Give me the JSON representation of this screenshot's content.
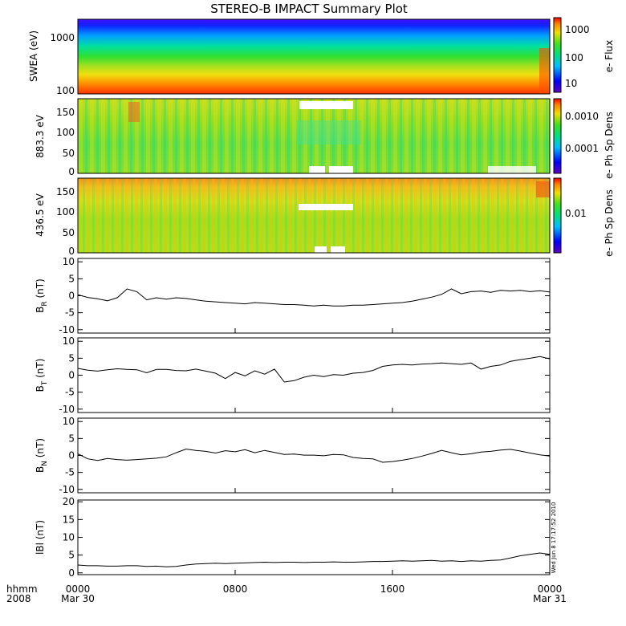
{
  "chart_data": [
    {
      "type": "heatmap",
      "title": "STEREO-B IMPACT Summary Plot",
      "ylabel": "SWEA (eV)",
      "yscale": "log",
      "ylim": [
        90,
        2000
      ],
      "yticks": [
        "100",
        "1000"
      ],
      "colorbar": {
        "label": "e- Flux",
        "scale": "log",
        "ticks": [
          "10",
          "100",
          "1000"
        ]
      },
      "description_values": {
        "low_energy_flux": "high (red)",
        "high_energy_flux": "low (blue)"
      }
    },
    {
      "type": "heatmap",
      "ylabel": "883.3 eV",
      "ylim": [
        -10,
        180
      ],
      "yticks": [
        "0",
        "50",
        "100",
        "150"
      ],
      "colorbar": {
        "label": "e- Ph Sp Dens",
        "scale": "log",
        "ticks": [
          "0.0001",
          "0.0010"
        ]
      }
    },
    {
      "type": "heatmap",
      "ylabel": "436.5 eV",
      "ylim": [
        -10,
        180
      ],
      "yticks": [
        "0",
        "50",
        "100",
        "150"
      ],
      "colorbar": {
        "label": "e- Ph Sp Dens",
        "scale": "log",
        "ticks": [
          "0.01"
        ]
      }
    },
    {
      "type": "line",
      "ylabel_main": "B",
      "ylabel_sub": "R",
      "ylabel_unit": " (nT)",
      "ylim": [
        -11,
        11
      ],
      "yticks": [
        "10",
        "5",
        "0",
        "-5",
        "-10"
      ],
      "x": [
        0,
        0.5,
        1,
        1.5,
        2,
        2.5,
        3,
        3.5,
        4,
        4.5,
        5,
        5.5,
        6,
        6.5,
        7,
        7.5,
        8,
        8.5,
        9,
        9.5,
        10,
        10.5,
        11,
        11.5,
        12,
        12.5,
        13,
        13.5,
        14,
        14.5,
        15,
        15.5,
        16,
        16.5,
        17,
        17.5,
        18,
        18.5,
        19,
        19.5,
        20,
        20.5,
        21,
        21.5,
        22,
        22.5,
        23,
        23.5,
        24
      ],
      "values": [
        0.3,
        -0.5,
        -0.9,
        -1.5,
        -0.6,
        2,
        1.2,
        -1.2,
        -0.6,
        -1,
        -0.6,
        -0.8,
        -1.2,
        -1.6,
        -1.8,
        -2,
        -2.2,
        -2.4,
        -2,
        -2.2,
        -2.4,
        -2.6,
        -2.6,
        -2.8,
        -3,
        -2.8,
        -3,
        -3,
        -2.8,
        -2.8,
        -2.6,
        -2.4,
        -2.2,
        -2,
        -1.6,
        -1,
        -0.4,
        0.4,
        2,
        0.6,
        1.2,
        1.4,
        1,
        1.6,
        1.4,
        1.6,
        1.2,
        1.5,
        1.1
      ]
    },
    {
      "type": "line",
      "ylabel_main": "B",
      "ylabel_sub": "T",
      "ylabel_unit": " (nT)",
      "ylim": [
        -11,
        11
      ],
      "yticks": [
        "10",
        "5",
        "0",
        "-5",
        "-10"
      ],
      "x": [
        0,
        0.5,
        1,
        1.5,
        2,
        2.5,
        3,
        3.5,
        4,
        4.5,
        5,
        5.5,
        6,
        6.5,
        7,
        7.5,
        8,
        8.5,
        9,
        9.5,
        10,
        10.5,
        11,
        11.5,
        12,
        12.5,
        13,
        13.5,
        14,
        14.5,
        15,
        15.5,
        16,
        16.5,
        17,
        17.5,
        18,
        18.5,
        19,
        19.5,
        20,
        20.5,
        21,
        21.5,
        22,
        22.5,
        23,
        23.5,
        24
      ],
      "values": [
        2,
        1.5,
        1.2,
        1.6,
        1.9,
        1.7,
        1.6,
        0.7,
        1.7,
        1.7,
        1.4,
        1.3,
        1.8,
        1.2,
        0.6,
        -1,
        0.8,
        -0.2,
        1.3,
        0.3,
        1.8,
        -2,
        -1.6,
        -0.6,
        0,
        -0.4,
        0.2,
        0,
        0.6,
        0.8,
        1.4,
        2.6,
        3,
        3.2,
        3,
        3.3,
        3.4,
        3.6,
        3.4,
        3.2,
        3.6,
        1.8,
        2.6,
        3,
        4.1,
        4.6,
        5,
        5.5,
        4.8
      ]
    },
    {
      "type": "line",
      "ylabel_main": "B",
      "ylabel_sub": "N",
      "ylabel_unit": " (nT)",
      "ylim": [
        -11,
        11
      ],
      "yticks": [
        "10",
        "5",
        "0",
        "-5",
        "-10"
      ],
      "x": [
        0,
        0.5,
        1,
        1.5,
        2,
        2.5,
        3,
        3.5,
        4,
        4.5,
        5,
        5.5,
        6,
        6.5,
        7,
        7.5,
        8,
        8.5,
        9,
        9.5,
        10,
        10.5,
        11,
        11.5,
        12,
        12.5,
        13,
        13.5,
        14,
        14.5,
        15,
        15.5,
        16,
        16.5,
        17,
        17.5,
        18,
        18.5,
        19,
        19.5,
        20,
        20.5,
        21,
        21.5,
        22,
        22.5,
        23,
        23.5,
        24
      ],
      "values": [
        0.5,
        -1,
        -1.5,
        -0.9,
        -1.2,
        -1.4,
        -1.2,
        -1,
        -0.8,
        -0.4,
        0.8,
        1.9,
        1.5,
        1.2,
        0.7,
        1.4,
        1.1,
        1.7,
        0.8,
        1.5,
        0.9,
        0.3,
        0.4,
        0.1,
        0.1,
        -0.1,
        0.3,
        0.2,
        -0.6,
        -0.9,
        -1,
        -2,
        -1.8,
        -1.4,
        -0.9,
        -0.2,
        0.6,
        1.5,
        0.8,
        0.2,
        0.5,
        1,
        1.2,
        1.6,
        1.8,
        1.3,
        0.7,
        0.2,
        -0.2
      ]
    },
    {
      "type": "line",
      "ylabel_main": "lBl (nT)",
      "ylim": [
        -0.5,
        20.5
      ],
      "yticks": [
        "20",
        "15",
        "10",
        "5",
        "0"
      ],
      "x": [
        0,
        0.5,
        1,
        1.5,
        2,
        2.5,
        3,
        3.5,
        4,
        4.5,
        5,
        5.5,
        6,
        6.5,
        7,
        7.5,
        8,
        8.5,
        9,
        9.5,
        10,
        10.5,
        11,
        11.5,
        12,
        12.5,
        13,
        13.5,
        14,
        14.5,
        15,
        15.5,
        16,
        16.5,
        17,
        17.5,
        18,
        18.5,
        19,
        19.5,
        20,
        20.5,
        21,
        21.5,
        22,
        22.5,
        23,
        23.5,
        24
      ],
      "values": [
        2.2,
        2,
        2,
        1.9,
        1.9,
        2,
        2,
        1.8,
        1.9,
        1.7,
        1.8,
        2.2,
        2.5,
        2.6,
        2.7,
        2.6,
        2.7,
        2.8,
        2.9,
        3,
        2.9,
        3,
        3,
        2.9,
        3,
        3,
        3.1,
        3,
        3,
        3.1,
        3.2,
        3.2,
        3.3,
        3.4,
        3.3,
        3.4,
        3.5,
        3.3,
        3.4,
        3.2,
        3.4,
        3.3,
        3.5,
        3.6,
        4.2,
        4.8,
        5.2,
        5.6,
        5.2
      ]
    }
  ],
  "xaxis": {
    "row1_labels": [
      "0000",
      "0800",
      "1600",
      "0000"
    ],
    "row2_labels": [
      "Mar 30",
      "",
      "",
      "Mar 31"
    ],
    "left_row1": "hhmm",
    "left_row2": "2008"
  },
  "timestamp": "Wed Jun  8 17:17:52 2010",
  "colors": {
    "axis": "#000000",
    "line": "#000000",
    "fill_gap": "#ffffff"
  }
}
